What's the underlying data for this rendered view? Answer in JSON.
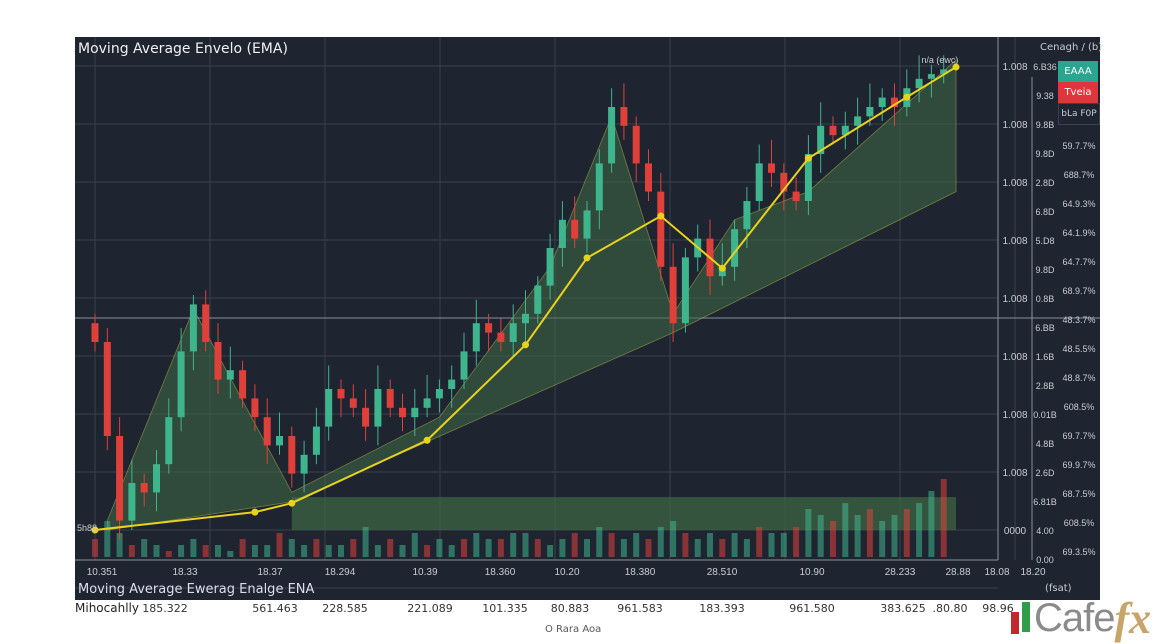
{
  "title": "Moving Average Envelo (EMA)",
  "axis_header": "Cenagh / (b)",
  "legend": [
    {
      "label": "EAAA",
      "color": "#2aa58f"
    },
    {
      "label": "Tveia",
      "color": "#e0353a"
    },
    {
      "label": "bLa F0P",
      "color": "#1e2430"
    }
  ],
  "ema_label": "n/a (ewc)",
  "left_label": "5h88",
  "bottom_title": "Moving Average Ewerag Enalge ENA",
  "bottom_unit": "(fsat)",
  "row_label": "Mihocahlly",
  "row_values": [
    "185.322",
    "561.463",
    "228.585",
    "221.089",
    "101.335",
    "80.883",
    "961.583",
    "183.393",
    "961.580",
    "383.625",
    ".80.80",
    "98.96"
  ],
  "footer": "O Rara Aoa",
  "logo": {
    "text1": "Cafe",
    "text2": "fx"
  },
  "colors": {
    "background": "#1e2430",
    "up": "#3fb58e",
    "down": "#e0403a",
    "ema": "#e8d21c",
    "envelope": "#3f6a45",
    "grid": "#39404d"
  },
  "chart_data": {
    "type": "candlestick",
    "title": "Moving Average Envelo (EMA)",
    "grid": true,
    "ylim": [
      0,
      100
    ],
    "x_tick_labels": [
      "10.351",
      "18.33",
      "18.37",
      "18.294",
      "10.39",
      "18.360",
      "10.20",
      "18.380",
      "28.510",
      "10.90",
      "28.233",
      "28.88",
      "18.08",
      "18.20"
    ],
    "y_axis_1": [
      "1.008",
      "1.008",
      "1.008",
      "1.008",
      "1.008",
      "1.008",
      "1.008",
      "1.008",
      "0000"
    ],
    "y_axis_2": [
      "6.B36",
      "9.38",
      "9.8B",
      "9.8D",
      "2.8D",
      "6.8D",
      "5.D8",
      "9.8D",
      "0.8B",
      "6.BB",
      "1.6B",
      "2.8B",
      "0.01B",
      "4.8B",
      "2.6D",
      "6.81B",
      "4.00",
      "0.00"
    ],
    "y_axis_3": [
      "59.7.7%",
      "688.7%",
      "64.9.3%",
      "64.1.9%",
      "64.7.7%",
      "68.9.7%",
      "48.3.7%",
      "48.5.5%",
      "48.8.7%",
      "608.5%",
      "69.7.7%",
      "69.9.7%",
      "68.7.5%",
      "608.5%",
      "69.3.5%"
    ],
    "close": [
      40,
      20,
      2,
      10,
      8,
      14,
      24,
      38,
      48,
      40,
      32,
      34,
      28,
      24,
      18,
      20,
      12,
      16,
      22,
      30,
      28,
      26,
      22,
      30,
      26,
      24,
      26,
      28,
      30,
      32,
      38,
      44,
      42,
      40,
      44,
      46,
      52,
      60,
      66,
      62,
      68,
      78,
      90,
      86,
      78,
      72,
      56,
      44,
      58,
      62,
      54,
      56,
      64,
      70,
      78,
      76,
      72,
      70,
      80,
      86,
      84,
      86,
      88,
      90,
      92,
      90,
      94,
      96,
      97,
      98
    ],
    "volume": [
      3,
      6,
      4,
      2,
      3,
      2,
      1,
      2,
      3,
      2,
      2,
      1,
      3,
      2,
      2,
      4,
      3,
      2,
      3,
      2,
      2,
      3,
      5,
      2,
      3,
      2,
      4,
      2,
      3,
      2,
      3,
      4,
      3,
      3,
      4,
      4,
      3,
      2,
      3,
      4,
      3,
      5,
      4,
      3,
      4,
      3,
      5,
      6,
      4,
      3,
      4,
      3,
      4,
      3,
      5,
      4,
      4,
      5,
      8,
      7,
      6,
      9,
      7,
      8,
      6,
      7,
      8,
      9,
      11,
      13
    ],
    "ema_points": [
      [
        0,
        0
      ],
      [
        13,
        3.8
      ],
      [
        16,
        5.7
      ],
      [
        27,
        19.1
      ],
      [
        35,
        39.4
      ],
      [
        40,
        57.9
      ],
      [
        46,
        66.8
      ],
      [
        51,
        55.7
      ],
      [
        58,
        79.1
      ],
      [
        66,
        92.1
      ],
      [
        70,
        98.5
      ]
    ],
    "envelope_upper": [
      [
        1,
        2
      ],
      [
        8,
        47
      ],
      [
        16,
        8
      ],
      [
        28,
        24
      ],
      [
        37,
        56
      ],
      [
        42,
        88
      ],
      [
        47,
        46
      ],
      [
        52,
        66
      ],
      [
        58,
        72
      ],
      [
        70,
        100
      ]
    ],
    "envelope_lower": [
      [
        70,
        72
      ],
      [
        47,
        42
      ],
      [
        16,
        6
      ],
      [
        1,
        0
      ]
    ]
  }
}
